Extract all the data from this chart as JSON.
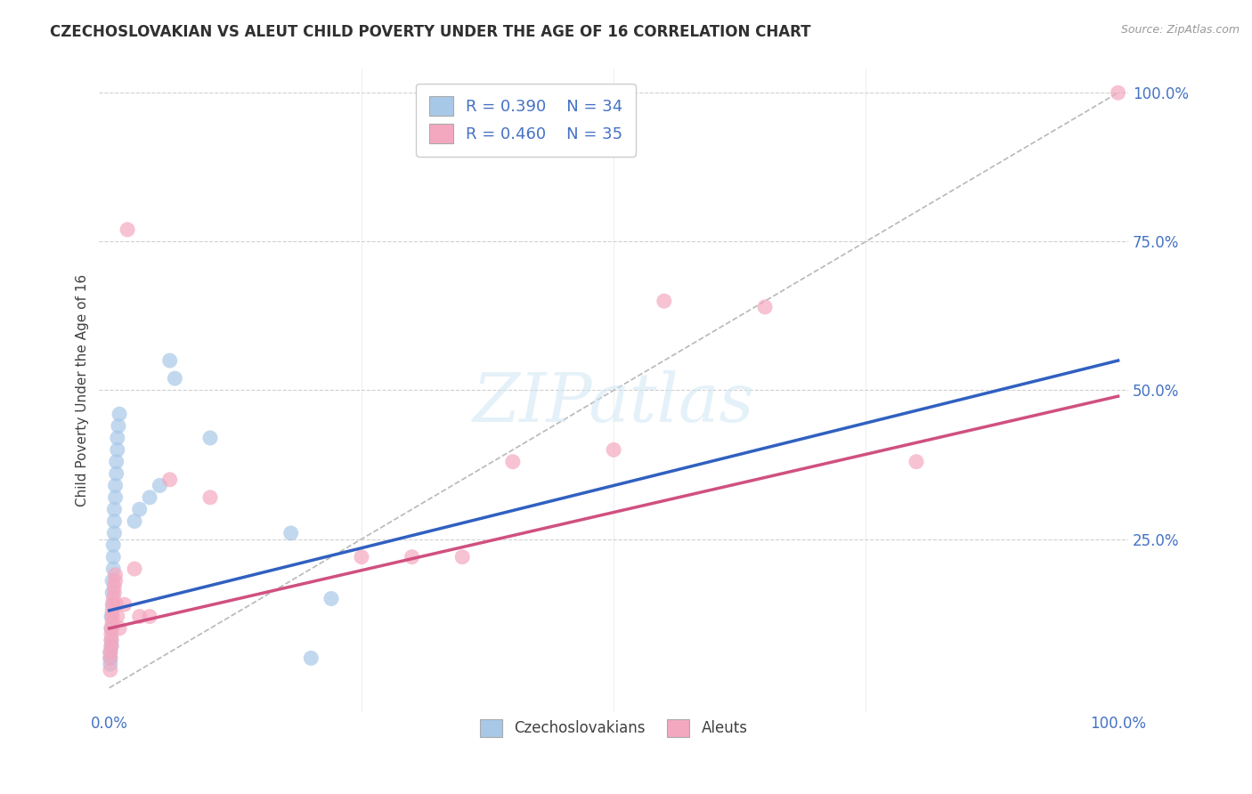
{
  "title": "CZECHOSLOVAKIAN VS ALEUT CHILD POVERTY UNDER THE AGE OF 16 CORRELATION CHART",
  "source": "Source: ZipAtlas.com",
  "ylabel": "Child Poverty Under the Age of 16",
  "watermark": "ZIPatlas",
  "legend_r1": "R = 0.390",
  "legend_n1": "N = 34",
  "legend_r2": "R = 0.460",
  "legend_n2": "N = 35",
  "background_color": "#ffffff",
  "grid_color": "#d0d0d0",
  "czech_color": "#a8c8e8",
  "aleut_color": "#f4a8c0",
  "czech_line_color": "#3060c0",
  "aleut_line_color": "#d05080",
  "diag_color": "#b8b8b8",
  "title_color": "#303030",
  "tick_color": "#4472c4",
  "czech_scatter": [
    [
      0.001,
      0.04
    ],
    [
      0.001,
      0.05
    ],
    [
      0.001,
      0.06
    ],
    [
      0.002,
      0.07
    ],
    [
      0.002,
      0.08
    ],
    [
      0.002,
      0.1
    ],
    [
      0.002,
      0.12
    ],
    [
      0.003,
      0.14
    ],
    [
      0.003,
      0.16
    ],
    [
      0.003,
      0.18
    ],
    [
      0.004,
      0.2
    ],
    [
      0.004,
      0.22
    ],
    [
      0.004,
      0.24
    ],
    [
      0.005,
      0.26
    ],
    [
      0.005,
      0.28
    ],
    [
      0.005,
      0.3
    ],
    [
      0.006,
      0.32
    ],
    [
      0.006,
      0.34
    ],
    [
      0.007,
      0.36
    ],
    [
      0.007,
      0.38
    ],
    [
      0.008,
      0.4
    ],
    [
      0.008,
      0.42
    ],
    [
      0.009,
      0.44
    ],
    [
      0.01,
      0.46
    ],
    [
      0.025,
      0.28
    ],
    [
      0.03,
      0.3
    ],
    [
      0.04,
      0.32
    ],
    [
      0.05,
      0.34
    ],
    [
      0.06,
      0.55
    ],
    [
      0.065,
      0.52
    ],
    [
      0.1,
      0.42
    ],
    [
      0.18,
      0.26
    ],
    [
      0.2,
      0.05
    ],
    [
      0.22,
      0.15
    ]
  ],
  "aleut_scatter": [
    [
      0.001,
      0.03
    ],
    [
      0.001,
      0.05
    ],
    [
      0.001,
      0.06
    ],
    [
      0.002,
      0.07
    ],
    [
      0.002,
      0.08
    ],
    [
      0.002,
      0.09
    ],
    [
      0.002,
      0.1
    ],
    [
      0.003,
      0.11
    ],
    [
      0.003,
      0.12
    ],
    [
      0.003,
      0.13
    ],
    [
      0.004,
      0.14
    ],
    [
      0.004,
      0.15
    ],
    [
      0.005,
      0.16
    ],
    [
      0.005,
      0.17
    ],
    [
      0.006,
      0.18
    ],
    [
      0.006,
      0.19
    ],
    [
      0.007,
      0.14
    ],
    [
      0.008,
      0.12
    ],
    [
      0.01,
      0.1
    ],
    [
      0.015,
      0.14
    ],
    [
      0.018,
      0.77
    ],
    [
      0.025,
      0.2
    ],
    [
      0.03,
      0.12
    ],
    [
      0.04,
      0.12
    ],
    [
      0.06,
      0.35
    ],
    [
      0.1,
      0.32
    ],
    [
      0.25,
      0.22
    ],
    [
      0.3,
      0.22
    ],
    [
      0.35,
      0.22
    ],
    [
      0.4,
      0.38
    ],
    [
      0.5,
      0.4
    ],
    [
      0.55,
      0.65
    ],
    [
      0.65,
      0.64
    ],
    [
      0.8,
      0.38
    ],
    [
      1.0,
      1.0
    ]
  ],
  "czech_line": [
    [
      0.0,
      0.13
    ],
    [
      1.0,
      0.55
    ]
  ],
  "aleut_line": [
    [
      0.0,
      0.1
    ],
    [
      1.0,
      0.49
    ]
  ],
  "diag_line": [
    [
      0.0,
      0.0
    ],
    [
      1.0,
      1.0
    ]
  ],
  "xlim": [
    -0.01,
    1.01
  ],
  "ylim": [
    -0.04,
    1.04
  ],
  "xticks": [
    0.0,
    0.25,
    0.5,
    0.75,
    1.0
  ],
  "yticks": [
    0.0,
    0.25,
    0.5,
    0.75,
    1.0
  ],
  "xticklabels": [
    "0.0%",
    "",
    "",
    "",
    "100.0%"
  ],
  "yticklabels": [
    "",
    "25.0%",
    "50.0%",
    "75.0%",
    "100.0%"
  ]
}
